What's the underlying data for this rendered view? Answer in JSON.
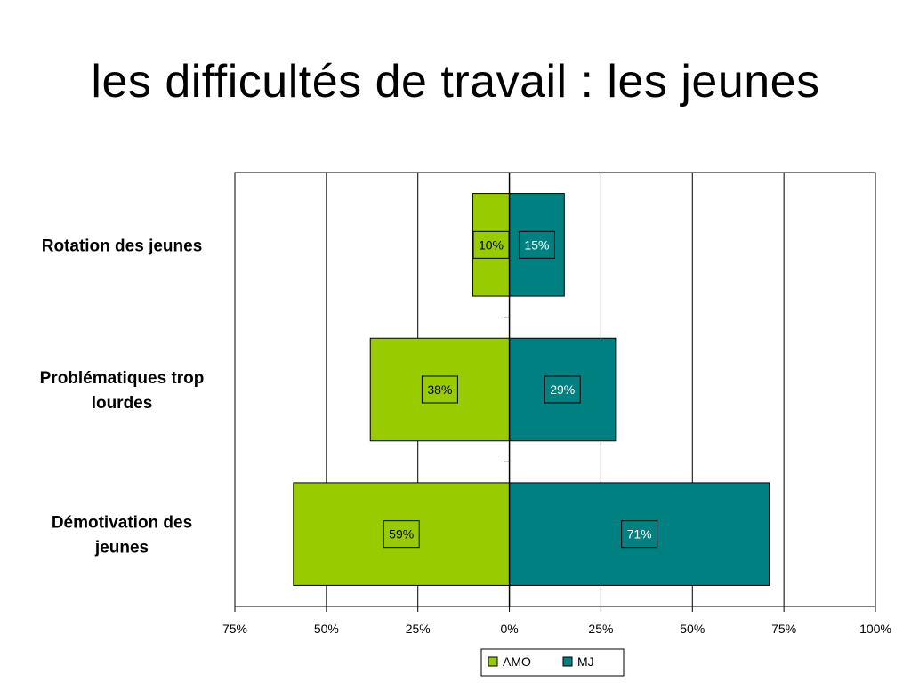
{
  "title": "les difficultés de travail : les jeunes",
  "colors": {
    "amo": "#99cc00",
    "mj": "#008080",
    "gridline": "#000000",
    "axis": "#000000"
  },
  "chart_data": {
    "type": "bar",
    "orientation": "horizontal",
    "layout": "diverging",
    "categories": [
      "Rotation des jeunes",
      "Problématiques trop lourdes",
      "Démotivation des jeunes"
    ],
    "series": [
      {
        "name": "AMO",
        "values": [
          10,
          38,
          59
        ],
        "labels": [
          "10%",
          "38%",
          "59%"
        ],
        "direction": "left"
      },
      {
        "name": "MJ",
        "values": [
          15,
          29,
          71
        ],
        "labels": [
          "15%",
          "29%",
          "71%"
        ],
        "direction": "right"
      }
    ],
    "xlim": [
      -75,
      100
    ],
    "xticks": [
      -75,
      -50,
      -25,
      0,
      25,
      50,
      75,
      100
    ],
    "xtick_labels": [
      "75%",
      "50%",
      "25%",
      "0%",
      "25%",
      "50%",
      "75%",
      "100%"
    ],
    "xlabel": "",
    "ylabel": "",
    "grid": true,
    "legend": "bottom-right"
  }
}
